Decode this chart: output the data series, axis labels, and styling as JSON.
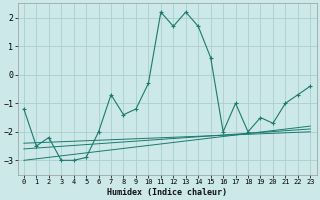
{
  "xlabel": "Humidex (Indice chaleur)",
  "ylabel": "",
  "bg_color": "#cce8e8",
  "grid_color": "#aad0d0",
  "line_color": "#1a7a6e",
  "xlim": [
    -0.5,
    23.5
  ],
  "ylim": [
    -3.5,
    2.5
  ],
  "yticks": [
    -3,
    -2,
    -1,
    0,
    1,
    2
  ],
  "xticks": [
    0,
    1,
    2,
    3,
    4,
    5,
    6,
    7,
    8,
    9,
    10,
    11,
    12,
    13,
    14,
    15,
    16,
    17,
    18,
    19,
    20,
    21,
    22,
    23
  ],
  "series_main": {
    "x": [
      0,
      1,
      2,
      3,
      4,
      5,
      6,
      7,
      8,
      9,
      10,
      11,
      12,
      13,
      14,
      15,
      16,
      17,
      18,
      19,
      20,
      21,
      22,
      23
    ],
    "y": [
      -1.2,
      -2.5,
      -2.2,
      -3.0,
      -3.0,
      -2.9,
      -2.0,
      -0.7,
      -1.4,
      -1.2,
      -0.3,
      2.2,
      1.7,
      2.2,
      1.7,
      0.6,
      -2.0,
      -1.0,
      -2.0,
      -1.5,
      -1.7,
      -1.0,
      -0.7,
      -0.4
    ]
  },
  "series_lines": [
    {
      "x": [
        0,
        23
      ],
      "y": [
        -2.4,
        -2.0
      ]
    },
    {
      "x": [
        0,
        23
      ],
      "y": [
        -2.6,
        -1.9
      ]
    },
    {
      "x": [
        0,
        23
      ],
      "y": [
        -3.0,
        -1.8
      ]
    }
  ]
}
